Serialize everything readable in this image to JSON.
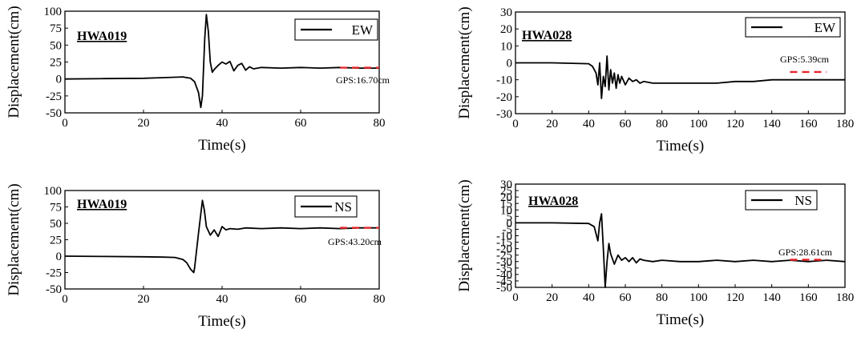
{
  "chart_data": [
    {
      "type": "line",
      "station": "HWA019",
      "component": "EW",
      "xlabel": "Time(s)",
      "ylabel": "Displacement(cm)",
      "xlim": [
        0,
        80
      ],
      "ylim": [
        -50,
        100
      ],
      "xticks": [
        0,
        20,
        40,
        60,
        80
      ],
      "yticks": [
        -50,
        -25,
        0,
        25,
        50,
        75,
        100
      ],
      "gps_label": "GPS:16.70cm",
      "gps_value": 16.7,
      "gps_x_range": [
        70,
        80
      ],
      "legend": {
        "position": "top-right",
        "entries": [
          "EW"
        ]
      },
      "series": [
        {
          "name": "EW",
          "x": [
            0,
            10,
            20,
            25,
            30,
            32,
            33,
            34,
            34.6,
            35,
            35.6,
            36,
            36.5,
            37,
            37.5,
            38,
            39,
            40,
            41,
            42,
            43,
            44,
            45,
            46,
            47,
            48,
            50,
            55,
            60,
            65,
            70,
            75,
            80
          ],
          "y": [
            0,
            0.5,
            1,
            2,
            3,
            1,
            -4,
            -20,
            -42,
            -25,
            60,
            95,
            70,
            25,
            10,
            14,
            20,
            25,
            22,
            26,
            12,
            20,
            23,
            13,
            18,
            15,
            17,
            16,
            17,
            16,
            17,
            16,
            16
          ]
        }
      ]
    },
    {
      "type": "line",
      "station": "HWA028",
      "component": "EW",
      "xlabel": "Time(s)",
      "ylabel": "Displacement(cm)",
      "xlim": [
        0,
        180
      ],
      "ylim": [
        -30,
        30
      ],
      "xticks": [
        0,
        20,
        40,
        60,
        80,
        100,
        120,
        140,
        160,
        180
      ],
      "yticks": [
        -30,
        -20,
        -10,
        0,
        10,
        20,
        30
      ],
      "gps_label": "GPS:5.39cm",
      "gps_value": -5.39,
      "gps_x_range": [
        150,
        170
      ],
      "legend": {
        "position": "top-right",
        "entries": [
          "EW"
        ]
      },
      "series": [
        {
          "name": "EW",
          "x": [
            0,
            20,
            40,
            42,
            44,
            45,
            46,
            47,
            48,
            49,
            50,
            51,
            52,
            53,
            54,
            55,
            56,
            57,
            58,
            60,
            62,
            64,
            66,
            68,
            70,
            75,
            80,
            90,
            100,
            110,
            120,
            130,
            140,
            150,
            160,
            170,
            180
          ],
          "y": [
            0,
            0,
            -0.5,
            -2,
            -6,
            -13,
            0,
            -21,
            -8,
            -14,
            4,
            -16,
            -4,
            -12,
            -6,
            -15,
            -7,
            -12,
            -8,
            -13,
            -9,
            -11,
            -10,
            -12,
            -11,
            -12,
            -12,
            -12,
            -12,
            -12,
            -11,
            -11,
            -10,
            -10,
            -10,
            -10,
            -10
          ]
        }
      ]
    },
    {
      "type": "line",
      "station": "HWA019",
      "component": "NS",
      "xlabel": "Time(s)",
      "ylabel": "Displacement(cm)",
      "xlim": [
        0,
        80
      ],
      "ylim": [
        -50,
        100
      ],
      "xticks": [
        0,
        20,
        40,
        60,
        80
      ],
      "yticks": [
        -50,
        -25,
        0,
        25,
        50,
        75,
        100
      ],
      "gps_label": "GPS:43.20cm",
      "gps_value": 43.2,
      "gps_x_range": [
        70,
        80
      ],
      "legend": {
        "position": "top-right",
        "entries": [
          "NS"
        ]
      },
      "series": [
        {
          "name": "NS",
          "x": [
            0,
            10,
            20,
            25,
            28,
            30,
            31,
            32,
            32.8,
            33,
            34,
            35,
            35.5,
            36,
            37,
            38,
            39,
            40,
            41,
            42,
            44,
            46,
            50,
            55,
            60,
            65,
            70,
            75,
            80
          ],
          "y": [
            0,
            -0.5,
            -1,
            -1.5,
            -2,
            -5,
            -10,
            -20,
            -25,
            -18,
            35,
            85,
            70,
            45,
            32,
            40,
            30,
            45,
            40,
            42,
            41,
            43,
            42,
            43,
            42,
            43,
            42,
            43,
            43
          ]
        }
      ]
    },
    {
      "type": "line",
      "station": "HWA028",
      "component": "NS",
      "xlabel": "Time(s)",
      "ylabel": "Displacement(cm)",
      "xlim": [
        0,
        180
      ],
      "ylim": [
        -50,
        30
      ],
      "xticks": [
        0,
        20,
        40,
        60,
        80,
        100,
        120,
        140,
        160,
        180
      ],
      "yticks": [
        -50,
        -45,
        -40,
        -35,
        -30,
        -25,
        -20,
        -15,
        -10,
        -5,
        0,
        5,
        10,
        15,
        20,
        25,
        30
      ],
      "gps_label": "GPS:28.61cm",
      "gps_value": -28.61,
      "gps_x_range": [
        150,
        170
      ],
      "legend": {
        "position": "top-right",
        "entries": [
          "NS"
        ]
      },
      "series": [
        {
          "name": "NS",
          "x": [
            0,
            20,
            40,
            43,
            45,
            46,
            47,
            48,
            49,
            50,
            51,
            52,
            53,
            54,
            56,
            58,
            60,
            62,
            64,
            66,
            68,
            70,
            75,
            80,
            90,
            100,
            110,
            120,
            130,
            140,
            150,
            160,
            170,
            180
          ],
          "y": [
            0,
            0,
            -0.5,
            -3,
            -14,
            0,
            7,
            -20,
            -50,
            -30,
            -16,
            -24,
            -28,
            -32,
            -25,
            -29,
            -27,
            -30,
            -27,
            -31,
            -28,
            -29,
            -30,
            -29,
            -30,
            -30,
            -29,
            -30,
            -29,
            -30,
            -29,
            -30,
            -29,
            -30
          ]
        }
      ]
    }
  ]
}
